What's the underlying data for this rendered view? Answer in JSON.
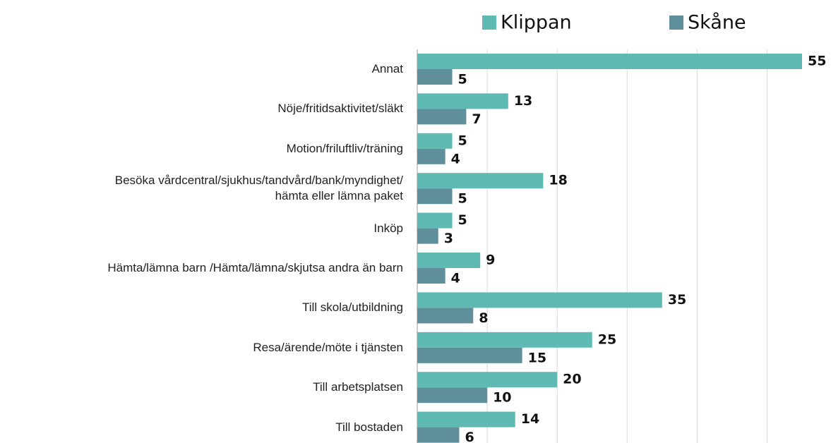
{
  "chart_data": {
    "type": "barh",
    "categories": [
      "Annat",
      "Nöje/fritidsaktivitet/släkt",
      "Motion/friluftliv/träning",
      "Besöka vårdcentral/sjukhus/tandvård/bank/myndighet/\nhämta eller lämna paket",
      "Inköp",
      "Hämta/lämna barn /Hämta/lämna/skjutsa andra än barn",
      "Till skola/utbildning",
      "Resa/ärende/möte i tjänsten",
      "Till arbetsplatsen",
      "Till bostaden"
    ],
    "series": [
      {
        "name": "Klippan",
        "color": "#5fbab4",
        "values": [
          55,
          13,
          5,
          18,
          5,
          9,
          35,
          25,
          20,
          14
        ]
      },
      {
        "name": "Skåne",
        "color": "#5e8f9a",
        "values": [
          5,
          7,
          4,
          5,
          3,
          4,
          8,
          15,
          10,
          6
        ]
      }
    ],
    "xlim": [
      0,
      55
    ],
    "xticks": [
      0,
      10,
      20,
      30,
      40,
      50
    ],
    "grid": true,
    "legend": "top"
  }
}
